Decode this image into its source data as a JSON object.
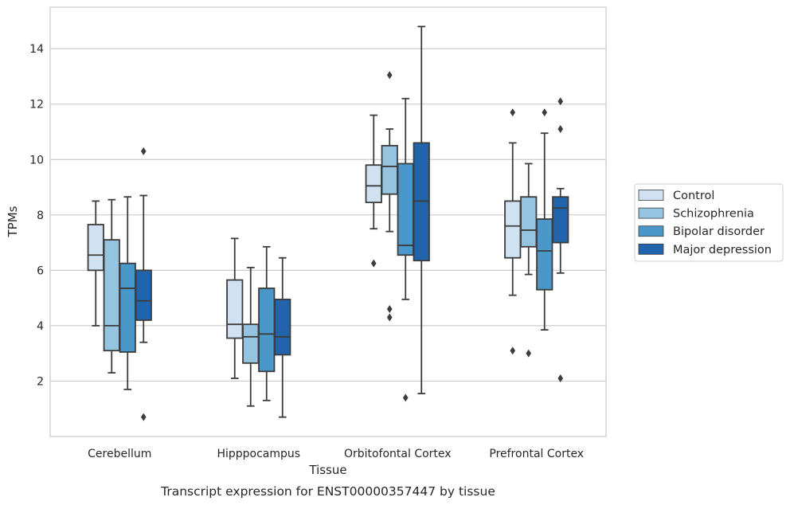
{
  "chart_data": {
    "type": "box",
    "caption": "Transcript expression for ENST00000357447 by tissue",
    "xlabel": "Tissue",
    "ylabel": "TPMs",
    "ylim": [
      0,
      15.5
    ],
    "yticks": [
      2,
      4,
      6,
      8,
      10,
      12,
      14
    ],
    "grid": "horizontal",
    "legend_position": "right",
    "categories": [
      "Cerebellum",
      "Hipppocampus",
      "Orbitofontal Cortex",
      "Prefrontal Cortex"
    ],
    "series": [
      {
        "name": "Control",
        "color": "#d0e1f2",
        "boxes": [
          {
            "whislo": 4.0,
            "q1": 6.0,
            "med": 6.55,
            "q3": 7.65,
            "whishi": 8.5,
            "fliers": []
          },
          {
            "whislo": 2.1,
            "q1": 3.55,
            "med": 4.05,
            "q3": 5.65,
            "whishi": 7.15,
            "fliers": []
          },
          {
            "whislo": 7.5,
            "q1": 8.45,
            "med": 9.05,
            "q3": 9.8,
            "whishi": 11.6,
            "fliers": [
              6.25
            ]
          },
          {
            "whislo": 5.1,
            "q1": 6.45,
            "med": 7.6,
            "q3": 8.5,
            "whishi": 10.6,
            "fliers": [
              11.7,
              3.1
            ]
          }
        ]
      },
      {
        "name": "Schizophrenia",
        "color": "#94c4df",
        "boxes": [
          {
            "whislo": 2.3,
            "q1": 3.1,
            "med": 4.0,
            "q3": 7.1,
            "whishi": 8.55,
            "fliers": []
          },
          {
            "whislo": 1.1,
            "q1": 2.65,
            "med": 3.6,
            "q3": 4.05,
            "whishi": 6.1,
            "fliers": []
          },
          {
            "whislo": 7.4,
            "q1": 8.75,
            "med": 9.75,
            "q3": 10.5,
            "whishi": 11.1,
            "fliers": [
              13.05,
              4.6,
              4.3
            ]
          },
          {
            "whislo": 5.85,
            "q1": 6.85,
            "med": 7.45,
            "q3": 8.65,
            "whishi": 9.85,
            "fliers": [
              3.0
            ]
          }
        ]
      },
      {
        "name": "Bipolar disorder",
        "color": "#4a98c9",
        "boxes": [
          {
            "whislo": 1.7,
            "q1": 3.05,
            "med": 5.35,
            "q3": 6.25,
            "whishi": 8.65,
            "fliers": []
          },
          {
            "whislo": 1.3,
            "q1": 2.35,
            "med": 3.7,
            "q3": 5.35,
            "whishi": 6.85,
            "fliers": []
          },
          {
            "whislo": 4.95,
            "q1": 6.55,
            "med": 6.9,
            "q3": 9.85,
            "whishi": 12.2,
            "fliers": [
              1.4
            ]
          },
          {
            "whislo": 3.85,
            "q1": 5.3,
            "med": 6.7,
            "q3": 7.85,
            "whishi": 10.95,
            "fliers": [
              11.7
            ]
          }
        ]
      },
      {
        "name": "Major depression",
        "color": "#2164ab",
        "boxes": [
          {
            "whislo": 3.4,
            "q1": 4.2,
            "med": 4.9,
            "q3": 6.0,
            "whishi": 8.7,
            "fliers": [
              10.3,
              0.7
            ]
          },
          {
            "whislo": 0.7,
            "q1": 2.95,
            "med": 3.6,
            "q3": 4.95,
            "whishi": 6.45,
            "fliers": []
          },
          {
            "whislo": 1.55,
            "q1": 6.35,
            "med": 8.5,
            "q3": 10.6,
            "whishi": 14.8,
            "fliers": []
          },
          {
            "whislo": 5.9,
            "q1": 7.0,
            "med": 8.25,
            "q3": 8.65,
            "whishi": 8.95,
            "fliers": [
              12.1,
              11.1,
              2.1
            ]
          }
        ]
      }
    ]
  }
}
